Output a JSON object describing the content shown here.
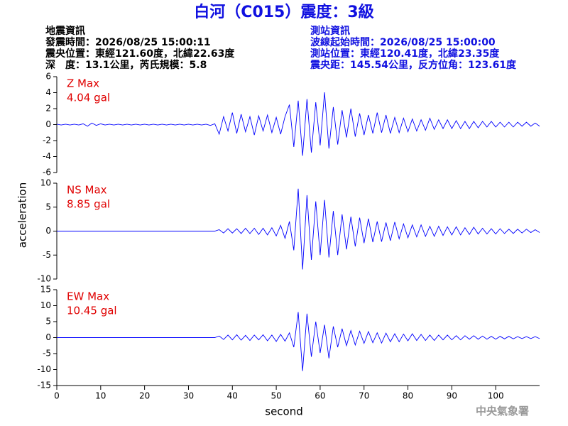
{
  "chart_data": {
    "type": "line",
    "title": "白河（C015）震度：3級",
    "info_left": [
      "地震資訊",
      "發震時間：2026/08/25 15:00:11",
      "震央位置：東經121.60度，北緯22.63度",
      "深　度：13.1公里，芮氏規模：5.8"
    ],
    "info_right": [
      "測站資訊",
      "波線起始時間：2026/08/25 15:00:00",
      "測站位置：東經120.41度，北緯23.35度",
      "震央距：145.54公里，反方位角：123.61度"
    ],
    "footer": "中央氣象署",
    "xlabel": "second",
    "ylabel": "acceleration",
    "xlim": [
      0,
      110
    ],
    "xticks": [
      0,
      10,
      20,
      30,
      40,
      50,
      60,
      70,
      80,
      90,
      100
    ],
    "x": [
      0,
      1,
      2,
      3,
      4,
      5,
      6,
      7,
      8,
      9,
      10,
      11,
      12,
      13,
      14,
      15,
      16,
      17,
      18,
      19,
      20,
      21,
      22,
      23,
      24,
      25,
      26,
      27,
      28,
      29,
      30,
      31,
      32,
      33,
      34,
      35,
      36,
      37,
      38,
      39,
      40,
      41,
      42,
      43,
      44,
      45,
      46,
      47,
      48,
      49,
      50,
      51,
      52,
      53,
      54,
      55,
      56,
      57,
      58,
      59,
      60,
      61,
      62,
      63,
      64,
      65,
      66,
      67,
      68,
      69,
      70,
      71,
      72,
      73,
      74,
      75,
      76,
      77,
      78,
      79,
      80,
      81,
      82,
      83,
      84,
      85,
      86,
      87,
      88,
      89,
      90,
      91,
      92,
      93,
      94,
      95,
      96,
      97,
      98,
      99,
      100,
      101,
      102,
      103,
      104,
      105,
      106,
      107,
      108,
      109,
      110
    ],
    "panels": [
      {
        "name": "Z Max",
        "max_label": "4.04 gal",
        "color": "#0000ff",
        "label_color": "#e00000",
        "ylim": [
          -6,
          6
        ],
        "yticks": [
          -6,
          -4,
          -2,
          0,
          2,
          4,
          6
        ],
        "values": [
          0.05,
          -0.05,
          0.05,
          -0.05,
          0.05,
          -0.05,
          0.1,
          -0.2,
          0.2,
          -0.1,
          0.1,
          -0.05,
          0.05,
          -0.05,
          0.05,
          -0.05,
          0.05,
          -0.05,
          0.05,
          -0.05,
          0.05,
          -0.05,
          0.05,
          -0.05,
          0.05,
          -0.05,
          0.05,
          -0.05,
          0.05,
          -0.05,
          0.05,
          -0.05,
          0.05,
          -0.05,
          0.05,
          -0.1,
          0.1,
          -1.2,
          1.0,
          -0.8,
          1.5,
          -1.1,
          1.3,
          -0.9,
          1.0,
          -1.3,
          1.1,
          -0.8,
          1.2,
          -1.0,
          0.9,
          -1.2,
          1.0,
          2.5,
          -2.8,
          3.0,
          -3.9,
          3.2,
          -3.5,
          2.8,
          -2.6,
          4.04,
          -3.0,
          2.2,
          -2.5,
          1.8,
          -1.6,
          2.0,
          -1.5,
          1.4,
          -1.3,
          1.2,
          -1.1,
          1.5,
          -1.0,
          1.2,
          -1.1,
          0.9,
          -1.0,
          0.8,
          -0.9,
          0.7,
          -0.8,
          0.6,
          -0.7,
          0.8,
          -0.6,
          0.6,
          -0.5,
          0.6,
          -0.5,
          0.5,
          -0.5,
          0.4,
          -0.5,
          0.4,
          -0.4,
          0.4,
          -0.3,
          0.4,
          -0.3,
          0.3,
          -0.3,
          0.3,
          -0.3,
          0.3,
          -0.2,
          0.3,
          -0.2,
          0.2,
          -0.2
        ]
      },
      {
        "name": "NS Max",
        "max_label": "8.85 gal",
        "color": "#0000ff",
        "label_color": "#e00000",
        "ylim": [
          -10,
          10
        ],
        "yticks": [
          -10,
          -5,
          0,
          5,
          10
        ],
        "values": [
          0,
          0,
          0,
          0,
          0,
          0,
          0,
          0,
          0,
          0,
          0,
          0,
          0,
          0,
          0,
          0,
          0,
          0,
          0,
          0,
          0,
          0,
          0,
          0,
          0,
          0,
          0,
          0,
          0,
          0,
          0,
          0,
          0,
          0,
          0,
          0,
          0,
          0.3,
          -0.4,
          0.5,
          -0.4,
          0.5,
          -0.5,
          0.6,
          -0.5,
          0.6,
          -0.7,
          0.6,
          -0.8,
          0.7,
          -1.0,
          1.2,
          -1.5,
          2.0,
          -4.0,
          8.85,
          -8.0,
          7.5,
          -6.0,
          6.2,
          -5.0,
          6.5,
          -5.5,
          4.2,
          -5.0,
          3.5,
          -3.8,
          3.0,
          -3.2,
          2.8,
          -2.5,
          2.6,
          -2.3,
          2.0,
          -2.2,
          1.8,
          -2.0,
          1.9,
          -1.6,
          1.5,
          -1.4,
          1.3,
          -1.2,
          1.3,
          -1.1,
          1.0,
          -1.1,
          1.0,
          -0.9,
          0.9,
          -0.8,
          0.9,
          -0.8,
          0.7,
          -0.7,
          0.8,
          -0.6,
          0.6,
          -0.6,
          0.5,
          -0.6,
          0.5,
          -0.5,
          0.4,
          -0.5,
          0.4,
          -0.4,
          0.4,
          -0.3,
          0.3,
          -0.3
        ]
      },
      {
        "name": "EW Max",
        "max_label": "10.45 gal",
        "color": "#0000ff",
        "label_color": "#e00000",
        "ylim": [
          -15,
          15
        ],
        "yticks": [
          -15,
          -10,
          -5,
          0,
          5,
          10,
          15
        ],
        "values": [
          0,
          0,
          0,
          0,
          0,
          0,
          0,
          0,
          0,
          0,
          0,
          0,
          0,
          0,
          0,
          0,
          0,
          0,
          0,
          0,
          0,
          0,
          0,
          0,
          0,
          0,
          0,
          0,
          0,
          0,
          0,
          0,
          0,
          0,
          0,
          0,
          0,
          0.5,
          -0.6,
          0.8,
          -0.7,
          0.9,
          -0.8,
          0.7,
          -0.9,
          0.8,
          -0.7,
          0.9,
          -1.0,
          0.8,
          -1.2,
          1.0,
          -1.1,
          1.5,
          -3.0,
          8.0,
          -10.45,
          7.5,
          -6.0,
          5.0,
          -4.8,
          4.0,
          -6.5,
          3.5,
          -3.0,
          2.8,
          -2.5,
          2.2,
          -2.3,
          2.0,
          -1.8,
          1.9,
          -1.6,
          1.5,
          -1.7,
          1.4,
          -1.3,
          1.2,
          -1.3,
          1.1,
          -1.0,
          1.2,
          -0.9,
          1.0,
          -0.9,
          0.8,
          -0.9,
          0.8,
          -0.7,
          0.8,
          -0.7,
          0.6,
          -0.7,
          0.6,
          -0.5,
          0.6,
          -0.5,
          0.5,
          -0.5,
          0.4,
          -0.5,
          0.4,
          -0.4,
          0.4,
          -0.4,
          0.3,
          -0.3,
          0.3,
          -0.3,
          0.3,
          -0.3
        ]
      }
    ]
  }
}
